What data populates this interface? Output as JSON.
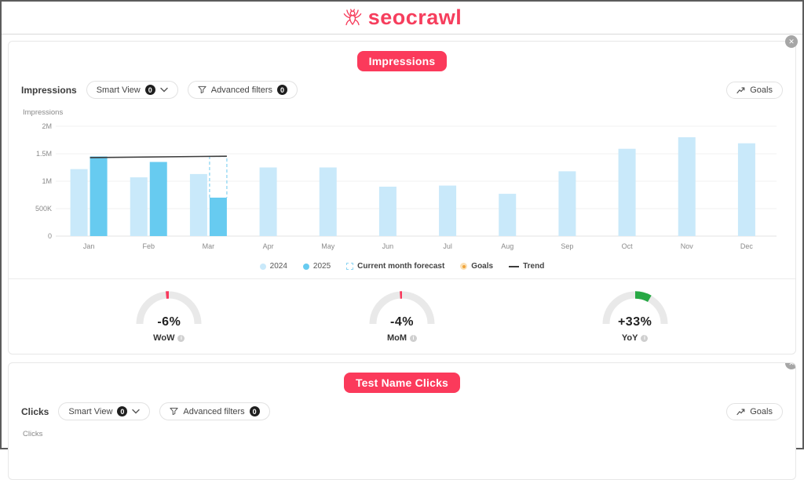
{
  "header": {
    "logo_text": "seocrawl"
  },
  "colors": {
    "accent": "#fb3a5b",
    "bar_2024": "#c9e9fa",
    "bar_2025": "#67cbf0",
    "forecast_border": "#8ed6f3",
    "trend_line": "#3c3c3c",
    "gauge_track": "#e9e9e9",
    "gauge_negative": "#f8395c",
    "gauge_positive": "#27a844"
  },
  "impressions_card": {
    "title_badge": "Impressions",
    "metric_label": "Impressions",
    "smart_view_label": "Smart View",
    "smart_view_count": "0",
    "advanced_filters_label": "Advanced filters",
    "advanced_filters_count": "0",
    "goals_button": "Goals",
    "axis_title": "Impressions",
    "close_label": "✕",
    "gauges": [
      {
        "value": "-6%",
        "label": "WoW"
      },
      {
        "value": "-4%",
        "label": "MoM"
      },
      {
        "value": "+33%",
        "label": "YoY"
      }
    ]
  },
  "clicks_card": {
    "title_badge": "Test Name Clicks",
    "metric_label": "Clicks",
    "smart_view_label": "Smart View",
    "smart_view_count": "0",
    "advanced_filters_label": "Advanced filters",
    "advanced_filters_count": "0",
    "goals_button": "Goals",
    "axis_title": "Clicks",
    "close_label": "✕"
  },
  "chart_data": {
    "type": "bar",
    "title": "Impressions",
    "ylabel": "Impressions",
    "ylim": [
      0,
      2000000
    ],
    "yticks": [
      {
        "label": "2M",
        "value": 2000000
      },
      {
        "label": "1.5M",
        "value": 1500000
      },
      {
        "label": "1M",
        "value": 1000000
      },
      {
        "label": "500K",
        "value": 500000
      },
      {
        "label": "0",
        "value": 0
      }
    ],
    "categories": [
      "Jan",
      "Feb",
      "Mar",
      "Apr",
      "May",
      "Jun",
      "Jul",
      "Aug",
      "Sep",
      "Oct",
      "Nov",
      "Dec"
    ],
    "series": [
      {
        "name": "2024",
        "color": "#c9e9fa",
        "values": [
          1220000,
          1070000,
          1130000,
          1250000,
          1250000,
          900000,
          920000,
          770000,
          1180000,
          1590000,
          1800000,
          1690000
        ]
      },
      {
        "name": "2025",
        "color": "#67cbf0",
        "values": [
          1450000,
          1350000,
          700000,
          null,
          null,
          null,
          null,
          null,
          null,
          null,
          null,
          null
        ]
      }
    ],
    "forecast": {
      "label": "Current month forecast",
      "month_index": 2,
      "value": 1450000
    },
    "trend": {
      "label": "Trend",
      "from_month_index": 0,
      "from_value": 1430000,
      "to_month_index": 2,
      "to_value": 1455000
    },
    "legend_items": [
      {
        "label": "2024",
        "swatch": "dot",
        "color": "#c9e9fa",
        "bold": false
      },
      {
        "label": "2025",
        "swatch": "dot",
        "color": "#67cbf0",
        "bold": false
      },
      {
        "label": "Current month forecast",
        "swatch": "dash",
        "color": "#8ed6f3",
        "bold": true
      },
      {
        "label": "Goals",
        "swatch": "goal",
        "color": "#f0a43c",
        "bold": true
      },
      {
        "label": "Trend",
        "swatch": "line",
        "color": "#3c3c3c",
        "bold": true
      }
    ],
    "legend_position": "bottom",
    "grid": true
  }
}
